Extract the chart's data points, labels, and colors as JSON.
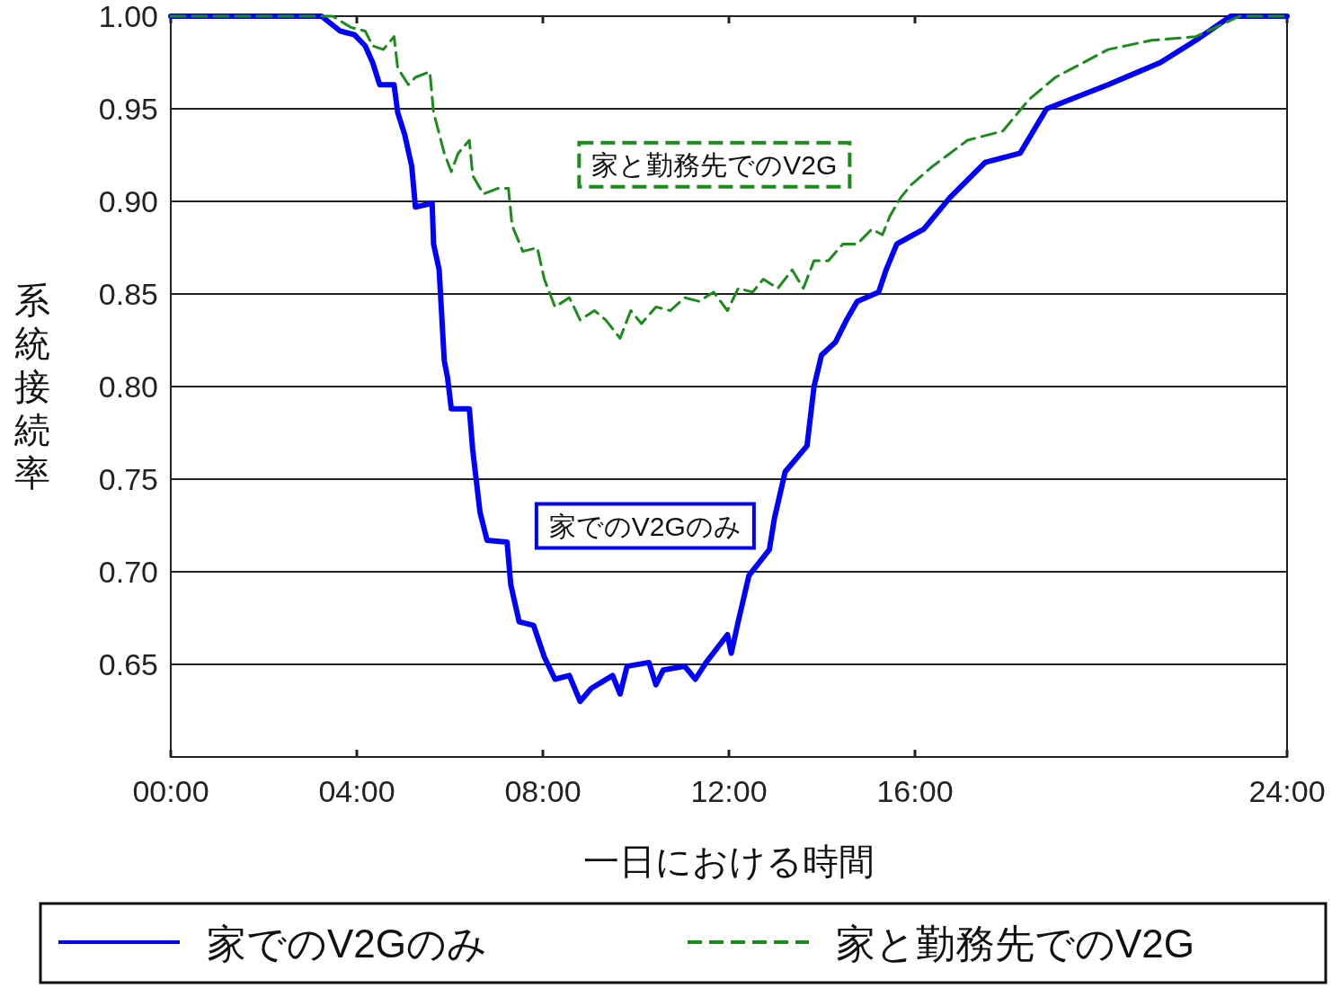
{
  "chart_data": {
    "type": "line",
    "xlabel": "一日における時間",
    "ylabel": "系統接続率",
    "xlim": [
      0,
      24
    ],
    "xticks": [
      {
        "value": 0,
        "label": "00:00"
      },
      {
        "value": 4,
        "label": "04:00"
      },
      {
        "value": 8,
        "label": "08:00"
      },
      {
        "value": 12,
        "label": "12:00"
      },
      {
        "value": 16,
        "label": "16:00"
      },
      {
        "value": 24,
        "label": "24:00"
      }
    ],
    "ylim": [
      0.6,
      1.0
    ],
    "yticks": [
      {
        "value": 0.65,
        "label": "0.65"
      },
      {
        "value": 0.7,
        "label": "0.70"
      },
      {
        "value": 0.75,
        "label": "0.75"
      },
      {
        "value": 0.8,
        "label": "0.80"
      },
      {
        "value": 0.85,
        "label": "0.85"
      },
      {
        "value": 0.9,
        "label": "0.90"
      },
      {
        "value": 0.95,
        "label": "0.95"
      },
      {
        "value": 1.0,
        "label": "1.00"
      }
    ],
    "grid": "y",
    "legend": "bottom",
    "series": [
      {
        "name": "家でのV2Gのみ",
        "color": "#0000ff",
        "line_style": "solid",
        "x": [
          0,
          3.24,
          3.64,
          3.95,
          4.18,
          4.34,
          4.49,
          4.8,
          4.88,
          5.03,
          5.18,
          5.26,
          5.62,
          5.65,
          5.77,
          5.88,
          5.95,
          6.03,
          6.42,
          6.49,
          6.65,
          6.8,
          7.23,
          7.31,
          7.49,
          7.8,
          8.03,
          8.26,
          8.57,
          8.8,
          9.04,
          9.5,
          9.66,
          9.81,
          10.28,
          10.43,
          10.59,
          11.05,
          11.28,
          11.51,
          11.97,
          12.05,
          12.2,
          12.43,
          12.87,
          12.98,
          13.21,
          13.68,
          13.83,
          13.99,
          14.29,
          14.53,
          14.76,
          15.22,
          15.38,
          15.61,
          16.19,
          16.75,
          17.51,
          18.26,
          18.83,
          20.15,
          21.28,
          22.04,
          22.79,
          24
        ],
        "values": [
          1.0,
          1.0,
          0.992,
          0.99,
          0.984,
          0.975,
          0.963,
          0.963,
          0.948,
          0.936,
          0.919,
          0.897,
          0.899,
          0.877,
          0.863,
          0.814,
          0.805,
          0.788,
          0.788,
          0.766,
          0.732,
          0.717,
          0.716,
          0.693,
          0.673,
          0.671,
          0.654,
          0.642,
          0.644,
          0.63,
          0.637,
          0.644,
          0.634,
          0.649,
          0.651,
          0.639,
          0.647,
          0.649,
          0.642,
          0.651,
          0.666,
          0.656,
          0.673,
          0.698,
          0.712,
          0.729,
          0.754,
          0.768,
          0.8,
          0.817,
          0.824,
          0.836,
          0.846,
          0.851,
          0.863,
          0.877,
          0.885,
          0.902,
          0.921,
          0.926,
          0.95,
          0.963,
          0.975,
          0.987,
          1.0,
          1.0
        ]
      },
      {
        "name": "家と勤務先でのV2G",
        "color": "#1a8c1a",
        "line_style": "dashed",
        "x": [
          0,
          3.48,
          3.87,
          4.18,
          4.34,
          4.57,
          4.8,
          4.88,
          5.11,
          5.26,
          5.57,
          5.65,
          5.88,
          6.03,
          6.18,
          6.42,
          6.49,
          6.72,
          7.03,
          7.26,
          7.34,
          7.57,
          7.88,
          8.03,
          8.26,
          8.57,
          8.8,
          9.11,
          9.35,
          9.66,
          9.89,
          10.12,
          10.43,
          10.74,
          11.05,
          11.36,
          11.67,
          11.97,
          12.2,
          12.51,
          12.74,
          13.05,
          13.36,
          13.6,
          13.83,
          14.14,
          14.45,
          14.76,
          15.07,
          15.3,
          15.46,
          15.69,
          15.92,
          16.38,
          17.13,
          17.89,
          18.45,
          19.02,
          20.15,
          21.09,
          22.04,
          22.98,
          24
        ],
        "values": [
          1.0,
          1.0,
          0.994,
          0.992,
          0.984,
          0.982,
          0.989,
          0.972,
          0.963,
          0.967,
          0.97,
          0.948,
          0.926,
          0.916,
          0.926,
          0.933,
          0.914,
          0.904,
          0.907,
          0.907,
          0.887,
          0.873,
          0.875,
          0.858,
          0.843,
          0.848,
          0.836,
          0.841,
          0.836,
          0.826,
          0.841,
          0.834,
          0.843,
          0.841,
          0.848,
          0.846,
          0.851,
          0.841,
          0.853,
          0.851,
          0.858,
          0.853,
          0.863,
          0.853,
          0.868,
          0.868,
          0.877,
          0.877,
          0.885,
          0.882,
          0.892,
          0.902,
          0.909,
          0.919,
          0.933,
          0.938,
          0.955,
          0.967,
          0.982,
          0.987,
          0.989,
          1.0,
          1.0
        ]
      }
    ],
    "annotations": [
      "家でのV2Gのみ",
      "家と勤務先でのV2G"
    ]
  }
}
